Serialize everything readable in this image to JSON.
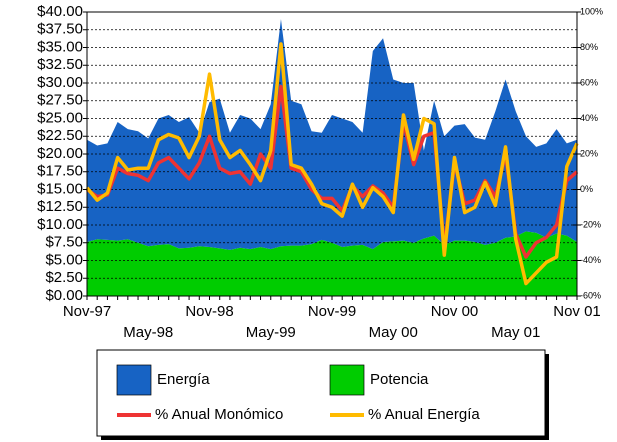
{
  "chart_data": {
    "type": "area",
    "categories": [
      "Nov-97",
      null,
      null,
      null,
      null,
      null,
      "May-98",
      null,
      null,
      null,
      null,
      null,
      "Nov-98",
      null,
      null,
      null,
      null,
      null,
      "May-99",
      null,
      null,
      null,
      null,
      null,
      "Nov-99",
      null,
      null,
      null,
      null,
      null,
      "May 00",
      null,
      null,
      null,
      null,
      null,
      "Nov 00",
      null,
      null,
      null,
      null,
      null,
      "May 01",
      null,
      null,
      null,
      null,
      null,
      "Nov 01"
    ],
    "series": [
      {
        "name": "Energía",
        "type": "area",
        "color": "#1763c4",
        "values": [
          14.4,
          13.2,
          13.6,
          16.7,
          15.5,
          15.7,
          15.2,
          17.8,
          18.2,
          17.8,
          18.4,
          16,
          20.4,
          21.1,
          16.5,
          18.7,
          18.4,
          16.6,
          20.4,
          32,
          20.4,
          19.9,
          15.9,
          15.1,
          18,
          18.1,
          17.4,
          15.8,
          27.9,
          28.7,
          22.8,
          22.2,
          22.5,
          12.4,
          19,
          15.3,
          16.2,
          16.4,
          14.7,
          14.8,
          18.5,
          22.3,
          17.6,
          13.4,
          12.1,
          13.3,
          14.7,
          13,
          14.4
        ]
      },
      {
        "name": "Potencia",
        "type": "area",
        "color": "#00cc00",
        "values": [
          7.6,
          8,
          7.9,
          7.8,
          8,
          7.5,
          7,
          7.2,
          7.3,
          6.7,
          6.8,
          7,
          6.9,
          6.7,
          6.5,
          6.8,
          6.6,
          6.9,
          6.6,
          7,
          7.1,
          7.1,
          7.3,
          7.9,
          7.5,
          6.9,
          7.1,
          7.2,
          6.6,
          7.6,
          7.7,
          7.8,
          7.5,
          8.1,
          8.5,
          7.2,
          7.8,
          7.8,
          7.6,
          7.2,
          7.5,
          8.2,
          8.4,
          9.1,
          8.9,
          8.2,
          8.8,
          8.5,
          7.6
        ]
      },
      {
        "name": "% Anual Monómico",
        "type": "line",
        "axis": "y2",
        "color": "#ee3333",
        "values": [
          0,
          -4,
          -3,
          12,
          9,
          8,
          5,
          15,
          18,
          12,
          6,
          15,
          30,
          12,
          9,
          10,
          3,
          20,
          12,
          58,
          12,
          10,
          0,
          -5,
          -5,
          -12,
          2,
          -4,
          2,
          -2,
          -10,
          38,
          14,
          30,
          32,
          -33,
          15,
          -8,
          -6,
          5,
          -4,
          20,
          -25,
          -38,
          -30,
          -27,
          -20,
          5,
          10
        ]
      },
      {
        "name": "% Anual Energía",
        "type": "line",
        "axis": "y2",
        "color": "#ffbb00",
        "values": [
          1,
          -6,
          -2,
          18,
          11,
          12,
          12,
          28,
          31,
          29,
          18,
          30,
          65,
          28,
          18,
          22,
          14,
          5,
          22,
          82,
          14,
          12,
          3,
          -8,
          -10,
          -15,
          3,
          -10,
          1,
          -4,
          -13,
          42,
          17,
          40,
          37,
          -37,
          18,
          -13,
          -10,
          4,
          -9,
          24,
          -28,
          -53,
          -47,
          -41,
          -38,
          13,
          26
        ]
      }
    ],
    "ylim": [
      0,
      40
    ],
    "yticks": [
      {
        "value": 0,
        "label": "$0.00"
      },
      {
        "value": 2.5,
        "label": "$2.50"
      },
      {
        "value": 5,
        "label": "$5.00"
      },
      {
        "value": 7.5,
        "label": "$7.50"
      },
      {
        "value": 10,
        "label": "$10.00"
      },
      {
        "value": 12.5,
        "label": "$12.50"
      },
      {
        "value": 15,
        "label": "$15.00"
      },
      {
        "value": 17.5,
        "label": "$17.50"
      },
      {
        "value": 20,
        "label": "$20.00"
      },
      {
        "value": 22.5,
        "label": "$22.50"
      },
      {
        "value": 25,
        "label": "$25.00"
      },
      {
        "value": 27.5,
        "label": "$27.50"
      },
      {
        "value": 30,
        "label": "$30.00"
      },
      {
        "value": 32.5,
        "label": "$32.50"
      },
      {
        "value": 35,
        "label": "$35.00"
      },
      {
        "value": 37.5,
        "label": "$37.50"
      },
      {
        "value": 40,
        "label": "$40.00"
      }
    ],
    "y2lim": [
      -60,
      100
    ],
    "y2ticks": [
      {
        "value": -60,
        "label": "-60%"
      },
      {
        "value": -40,
        "label": "-40%"
      },
      {
        "value": -20,
        "label": "-20%"
      },
      {
        "value": 0,
        "label": "0%"
      },
      {
        "value": 20,
        "label": "20%"
      },
      {
        "value": 40,
        "label": "40%"
      },
      {
        "value": 60,
        "label": "60%"
      },
      {
        "value": 80,
        "label": "80%"
      },
      {
        "value": 100,
        "label": "100%"
      }
    ],
    "grid": true
  }
}
